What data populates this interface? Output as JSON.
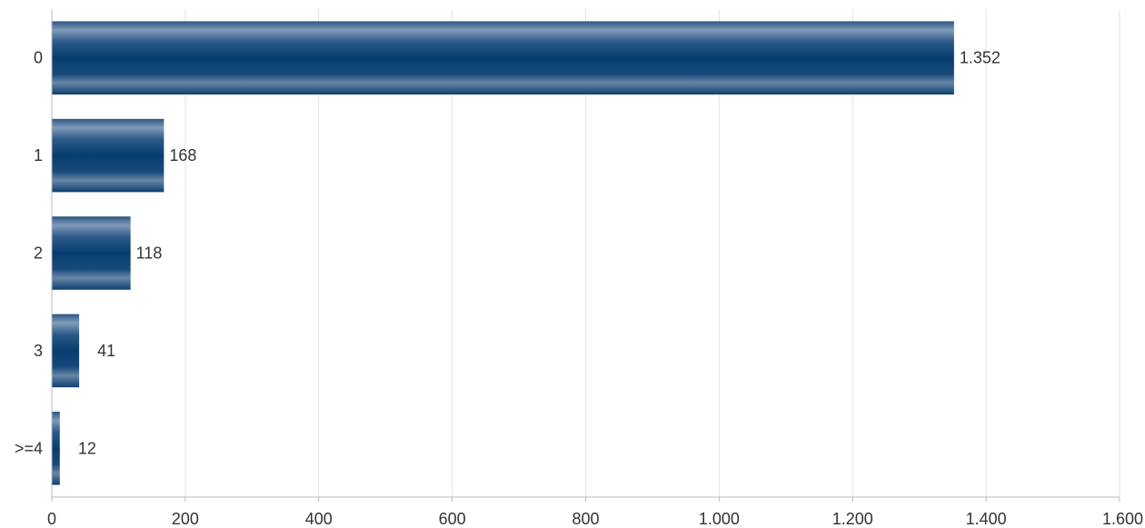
{
  "chart_data": {
    "type": "bar",
    "orientation": "horizontal",
    "categories": [
      "0",
      "1",
      "2",
      "3",
      ">=4"
    ],
    "values": [
      1352,
      168,
      118,
      41,
      12
    ],
    "value_labels": [
      "1.352",
      "168",
      "118",
      "41",
      "12"
    ],
    "xlim": [
      0,
      1600
    ],
    "x_ticks": [
      0,
      200,
      400,
      600,
      800,
      1000,
      1200,
      1400,
      1600
    ],
    "x_tick_labels": [
      "0",
      "200",
      "400",
      "600",
      "800",
      "1.000",
      "1.200",
      "1.400",
      "1.600"
    ],
    "title": "",
    "xlabel": "",
    "ylabel": "",
    "grid": "vertical",
    "legend": "none",
    "colors": {
      "bar_dark": "#063d70",
      "bar_light": "#7f9bb8",
      "grid": "#e2e2e2",
      "axis": "#bbbbbb",
      "text": "#333333"
    }
  }
}
